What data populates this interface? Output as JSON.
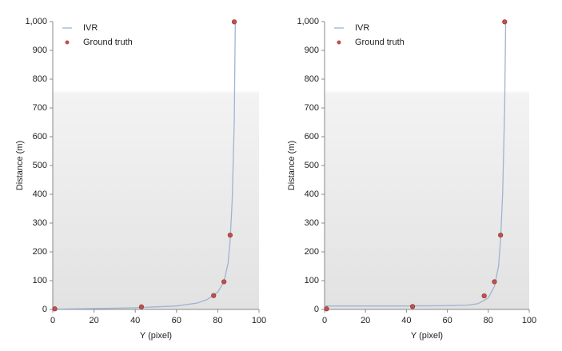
{
  "chart_data": [
    {
      "type": "line",
      "xlabel": "Y (pixel)",
      "ylabel": "Distance (m)",
      "xlim": [
        0,
        100
      ],
      "xticks": [
        0,
        20,
        40,
        60,
        80,
        100
      ],
      "ylim": [
        0,
        1000
      ],
      "yticks": [
        0,
        100,
        200,
        300,
        400,
        500,
        600,
        700,
        800,
        900,
        {
          "value": 1000,
          "label": "1,000"
        }
      ],
      "legend": "top-left",
      "series": [
        {
          "name": "IVR",
          "type": "line",
          "color": "#9fb4d2",
          "x": [
            0,
            20,
            40,
            60,
            70,
            75,
            80,
            83,
            85,
            86,
            87,
            88,
            88.5
          ],
          "values": [
            1,
            3,
            6,
            12,
            22,
            35,
            60,
            97,
            160,
            240,
            380,
            650,
            1000
          ]
        },
        {
          "name": "Ground truth",
          "type": "scatter",
          "color": "#c0504d",
          "x": [
            1,
            43,
            78,
            83,
            86,
            88
          ],
          "values": [
            2,
            9,
            48,
            96,
            258,
            999
          ]
        }
      ]
    },
    {
      "type": "line",
      "xlabel": "Y (pixel)",
      "ylabel": "Distance (m)",
      "xlim": [
        0,
        100
      ],
      "xticks": [
        0,
        20,
        40,
        60,
        80,
        100
      ],
      "ylim": [
        0,
        1000
      ],
      "yticks": [
        0,
        100,
        200,
        300,
        400,
        500,
        600,
        700,
        800,
        900,
        {
          "value": 1000,
          "label": "1,000"
        }
      ],
      "legend": "top-left",
      "series": [
        {
          "name": "IVR",
          "type": "line",
          "color": "#9fb4d2",
          "x": [
            0,
            20,
            40,
            60,
            70,
            75,
            80,
            83,
            85,
            86,
            87,
            88,
            88.5
          ],
          "values": [
            12,
            12,
            12,
            13,
            15,
            20,
            40,
            80,
            150,
            240,
            400,
            700,
            1000
          ]
        },
        {
          "name": "Ground truth",
          "type": "scatter",
          "color": "#c0504d",
          "x": [
            1,
            43,
            78,
            83,
            86,
            88
          ],
          "values": [
            2,
            10,
            47,
            96,
            258,
            999
          ]
        }
      ]
    }
  ]
}
